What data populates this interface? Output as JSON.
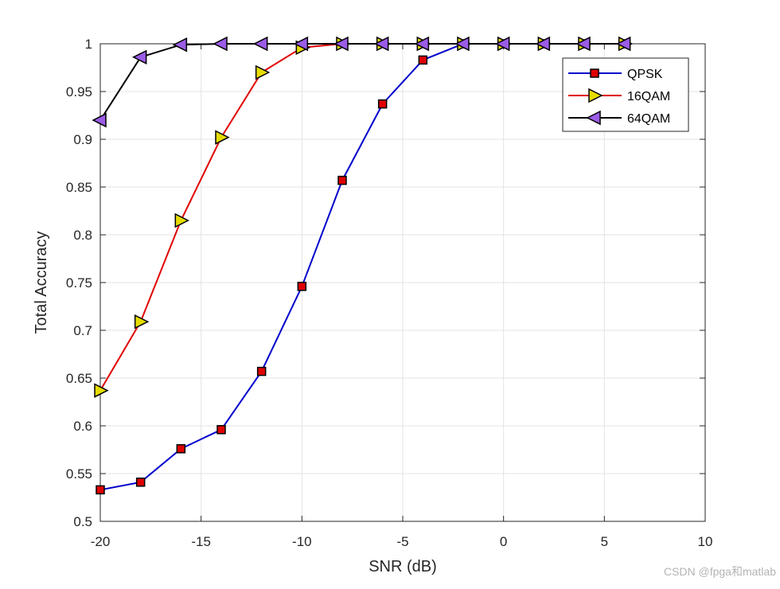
{
  "chart_data": {
    "type": "line",
    "title": "",
    "xlabel": "SNR (dB)",
    "ylabel": "Total Accuracy",
    "xlim": [
      -20,
      10
    ],
    "ylim": [
      0.5,
      1
    ],
    "xticks": [
      -20,
      -15,
      -10,
      -5,
      0,
      5,
      10
    ],
    "xtick_labels": [
      "-20",
      "-15",
      "-10",
      "-5",
      "0",
      "5",
      "10"
    ],
    "yticks": [
      0.5,
      0.55,
      0.6,
      0.65,
      0.7,
      0.75,
      0.8,
      0.85,
      0.9,
      0.95,
      1
    ],
    "ytick_labels": [
      "0.5",
      "0.55",
      "0.6",
      "0.65",
      "0.7",
      "0.75",
      "0.8",
      "0.85",
      "0.9",
      "0.95",
      "1"
    ],
    "grid": true,
    "legend_position": "top-right",
    "x": [
      -20,
      -18,
      -16,
      -14,
      -12,
      -10,
      -8,
      -6,
      -4,
      -2,
      0,
      2,
      4,
      6
    ],
    "series": [
      {
        "name": "QPSK",
        "color": "#0000cc",
        "marker": "square",
        "marker_fill": "#e00000",
        "values": [
          0.533,
          0.541,
          0.576,
          0.596,
          0.657,
          0.746,
          0.857,
          0.937,
          0.983,
          1.0,
          1.0,
          1.0,
          1.0,
          1.0
        ]
      },
      {
        "name": "16QAM",
        "color": "#e00000",
        "marker": "triangle-right",
        "marker_fill": "#e6dc00",
        "values": [
          0.637,
          0.709,
          0.815,
          0.902,
          0.97,
          0.996,
          1.0,
          1.0,
          1.0,
          1.0,
          1.0,
          1.0,
          1.0,
          1.0
        ]
      },
      {
        "name": "64QAM",
        "color": "#000000",
        "marker": "triangle-left",
        "marker_fill": "#9b5ce6",
        "values": [
          0.92,
          0.986,
          0.999,
          1.0,
          1.0,
          1.0,
          1.0,
          1.0,
          1.0,
          1.0,
          1.0,
          1.0,
          1.0,
          1.0
        ]
      }
    ]
  },
  "watermark": "CSDN @fpga和matlab"
}
